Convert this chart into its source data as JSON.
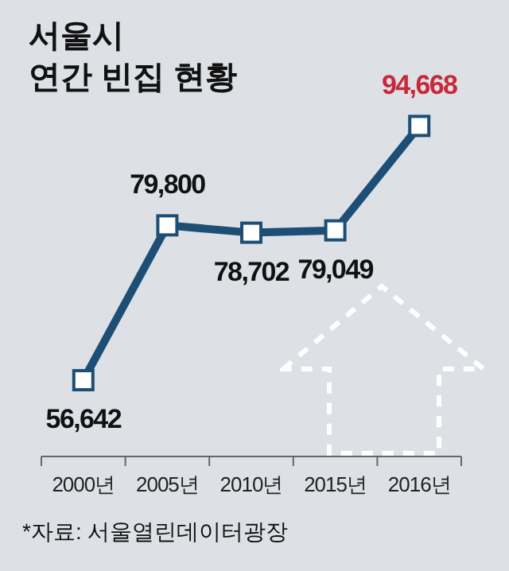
{
  "chart_data": {
    "type": "line",
    "title": "서울시\n연간 빈집 현황",
    "categories": [
      "2000년",
      "2005년",
      "2010년",
      "2015년",
      "2016년"
    ],
    "series": [
      {
        "color": "#1d4e76",
        "values": [
          56642,
          79800,
          78702,
          79049,
          94668
        ],
        "value_labels": [
          "56,642",
          "79,800",
          "78,702",
          "79,049",
          "94,668"
        ]
      }
    ],
    "marker": "square",
    "annotations": [
      "*자료: 서울열린데이터광장"
    ]
  }
}
